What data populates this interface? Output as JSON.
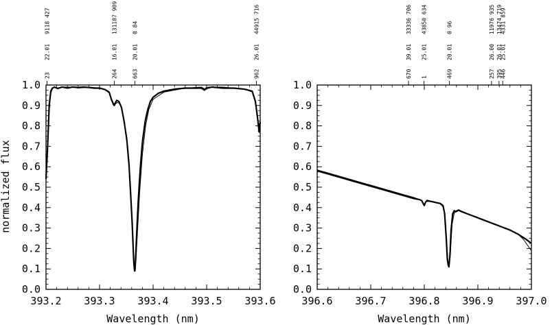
{
  "chart_data": [
    {
      "type": "line",
      "xlabel": "Wavelength (nm)",
      "ylabel": "normalized flux",
      "xlim": [
        393.2,
        393.6
      ],
      "ylim": [
        0.0,
        1.0
      ],
      "x_ticks": [
        "393.2",
        "393.3",
        "393.4",
        "393.5",
        "393.6"
      ],
      "y_ticks": [
        "0.0",
        "0.1",
        "0.2",
        "0.3",
        "0.4",
        "0.5",
        "0.6",
        "0.7",
        "0.8",
        "0.9",
        "1.0"
      ],
      "line_ids": [
        {
          "wavelength": 393.202,
          "code": "23",
          "col2": "22.01",
          "col3": "9118 427"
        },
        {
          "wavelength": 393.3275,
          "code": "264",
          "col2": "16.01",
          "col3": "131187 909"
        },
        {
          "wavelength": 393.366,
          "code": "663",
          "col2": "20.01",
          "col3": "0 84"
        },
        {
          "wavelength": 393.593,
          "code": "962",
          "col2": "26.01",
          "col3": "44915 716"
        }
      ],
      "series": [
        {
          "style": "thick",
          "x": [
            393.2,
            393.203,
            393.206,
            393.209,
            393.212,
            393.216,
            393.222,
            393.23,
            393.24,
            393.25,
            393.26,
            393.27,
            393.28,
            393.29,
            393.3,
            393.31,
            393.318,
            393.322,
            393.326,
            393.3275,
            393.329,
            393.332,
            393.336,
            393.341,
            393.346,
            393.351,
            393.355,
            393.358,
            393.361,
            393.363,
            393.364,
            393.365,
            393.3655,
            393.366,
            393.367,
            393.369,
            393.372,
            393.376,
            393.38,
            393.385,
            393.39,
            393.395,
            393.4,
            393.41,
            393.42,
            393.44,
            393.46,
            393.48,
            393.49,
            393.496,
            393.499,
            393.502,
            393.51,
            393.53,
            393.55,
            393.57,
            393.585,
            393.591,
            393.595,
            393.598,
            393.6
          ],
          "y": [
            0.54,
            0.7,
            0.9,
            0.97,
            0.985,
            0.99,
            0.983,
            0.99,
            0.985,
            0.99,
            0.988,
            0.99,
            0.988,
            0.985,
            0.985,
            0.978,
            0.965,
            0.93,
            0.905,
            0.9,
            0.91,
            0.925,
            0.92,
            0.89,
            0.82,
            0.73,
            0.61,
            0.47,
            0.32,
            0.19,
            0.13,
            0.1,
            0.09,
            0.09,
            0.13,
            0.25,
            0.42,
            0.59,
            0.72,
            0.82,
            0.88,
            0.92,
            0.94,
            0.96,
            0.97,
            0.98,
            0.985,
            0.985,
            0.985,
            0.975,
            0.985,
            0.985,
            0.99,
            0.985,
            0.985,
            0.98,
            0.97,
            0.92,
            0.84,
            0.77,
            0.82
          ]
        },
        {
          "style": "thin",
          "x": [
            393.2,
            393.204,
            393.208,
            393.212,
            393.216,
            393.22,
            393.23,
            393.24,
            393.25,
            393.26,
            393.28,
            393.3,
            393.31,
            393.318,
            393.322,
            393.326,
            393.329,
            393.333,
            393.337,
            393.342,
            393.347,
            393.352,
            393.356,
            393.359,
            393.362,
            393.364,
            393.366,
            393.368,
            393.371,
            393.375,
            393.38,
            393.386,
            393.392,
            393.4,
            393.42,
            393.46,
            393.49,
            393.497,
            393.503,
            393.53,
            393.57,
            393.586,
            393.592,
            393.596,
            393.6
          ],
          "y": [
            0.56,
            0.78,
            0.95,
            0.985,
            0.99,
            0.985,
            0.99,
            0.99,
            0.99,
            0.985,
            0.99,
            0.985,
            0.978,
            0.96,
            0.935,
            0.91,
            0.905,
            0.915,
            0.91,
            0.88,
            0.81,
            0.7,
            0.57,
            0.42,
            0.26,
            0.15,
            0.11,
            0.14,
            0.29,
            0.48,
            0.66,
            0.8,
            0.88,
            0.93,
            0.965,
            0.985,
            0.99,
            0.98,
            0.99,
            0.99,
            0.98,
            0.965,
            0.9,
            0.82,
            0.79
          ]
        }
      ]
    },
    {
      "type": "line",
      "xlabel": "Wavelength (nm)",
      "ylabel": "",
      "xlim": [
        396.6,
        397.0
      ],
      "ylim": [
        0.0,
        1.0
      ],
      "x_ticks": [
        "396.6",
        "396.7",
        "396.8",
        "396.9",
        "397.0"
      ],
      "y_ticks": [
        "0.0",
        "0.1",
        "0.2",
        "0.3",
        "0.4",
        "0.5",
        "0.6",
        "0.7",
        "0.8",
        "0.9",
        "1.0"
      ],
      "line_ids": [
        {
          "wavelength": 396.7705,
          "code": "670",
          "col2": "39.01",
          "col3": "33336 706"
        },
        {
          "wavelength": 396.7995,
          "code": "1",
          "col2": "25.01",
          "col3": "43850 634"
        },
        {
          "wavelength": 396.847,
          "code": "469",
          "col2": "20.01",
          "col3": "0 96"
        },
        {
          "wavelength": 396.9255,
          "code": "257",
          "col2": "26.00",
          "col3": "11976 935"
        },
        {
          "wavelength": 396.9395,
          "code": "395",
          "col2": "26.01",
          "col3": "13474 719"
        },
        {
          "wavelength": 396.9465,
          "code": "446",
          "col2": "25.01",
          "col3": "4331 859"
        }
      ],
      "series": [
        {
          "style": "thick",
          "x": [
            396.6,
            396.62,
            396.64,
            396.66,
            396.68,
            396.7,
            396.72,
            396.74,
            396.76,
            396.78,
            396.79,
            396.795,
            396.798,
            396.8,
            396.802,
            396.805,
            396.81,
            396.82,
            396.83,
            396.835,
            396.838,
            396.841,
            396.843,
            396.8445,
            396.846,
            396.848,
            396.85,
            396.853,
            396.856,
            396.859,
            396.861,
            396.864,
            396.87,
            396.88,
            396.9,
            396.92,
            396.94,
            396.96,
            396.975,
            396.99,
            397.0
          ],
          "y": [
            0.58,
            0.565,
            0.55,
            0.535,
            0.52,
            0.505,
            0.49,
            0.475,
            0.46,
            0.445,
            0.44,
            0.435,
            0.42,
            0.41,
            0.425,
            0.435,
            0.432,
            0.426,
            0.42,
            0.41,
            0.37,
            0.25,
            0.15,
            0.12,
            0.11,
            0.17,
            0.29,
            0.37,
            0.385,
            0.38,
            0.385,
            0.388,
            0.38,
            0.37,
            0.35,
            0.33,
            0.31,
            0.29,
            0.27,
            0.245,
            0.225
          ]
        },
        {
          "style": "thin",
          "x": [
            396.6,
            396.62,
            396.64,
            396.66,
            396.68,
            396.7,
            396.72,
            396.74,
            396.76,
            396.78,
            396.79,
            396.796,
            396.799,
            396.801,
            396.804,
            396.81,
            396.82,
            396.83,
            396.836,
            396.839,
            396.842,
            396.844,
            396.846,
            396.849,
            396.852,
            396.856,
            396.86,
            396.865,
            396.87,
            396.88,
            396.9,
            396.92,
            396.94,
            396.96,
            396.975,
            396.985,
            396.993,
            397.0
          ],
          "y": [
            0.585,
            0.57,
            0.555,
            0.54,
            0.525,
            0.51,
            0.495,
            0.48,
            0.465,
            0.45,
            0.44,
            0.43,
            0.415,
            0.42,
            0.43,
            0.43,
            0.425,
            0.418,
            0.4,
            0.34,
            0.22,
            0.14,
            0.11,
            0.19,
            0.32,
            0.375,
            0.38,
            0.385,
            0.383,
            0.37,
            0.352,
            0.332,
            0.312,
            0.292,
            0.27,
            0.245,
            0.215,
            0.19
          ]
        }
      ]
    }
  ]
}
